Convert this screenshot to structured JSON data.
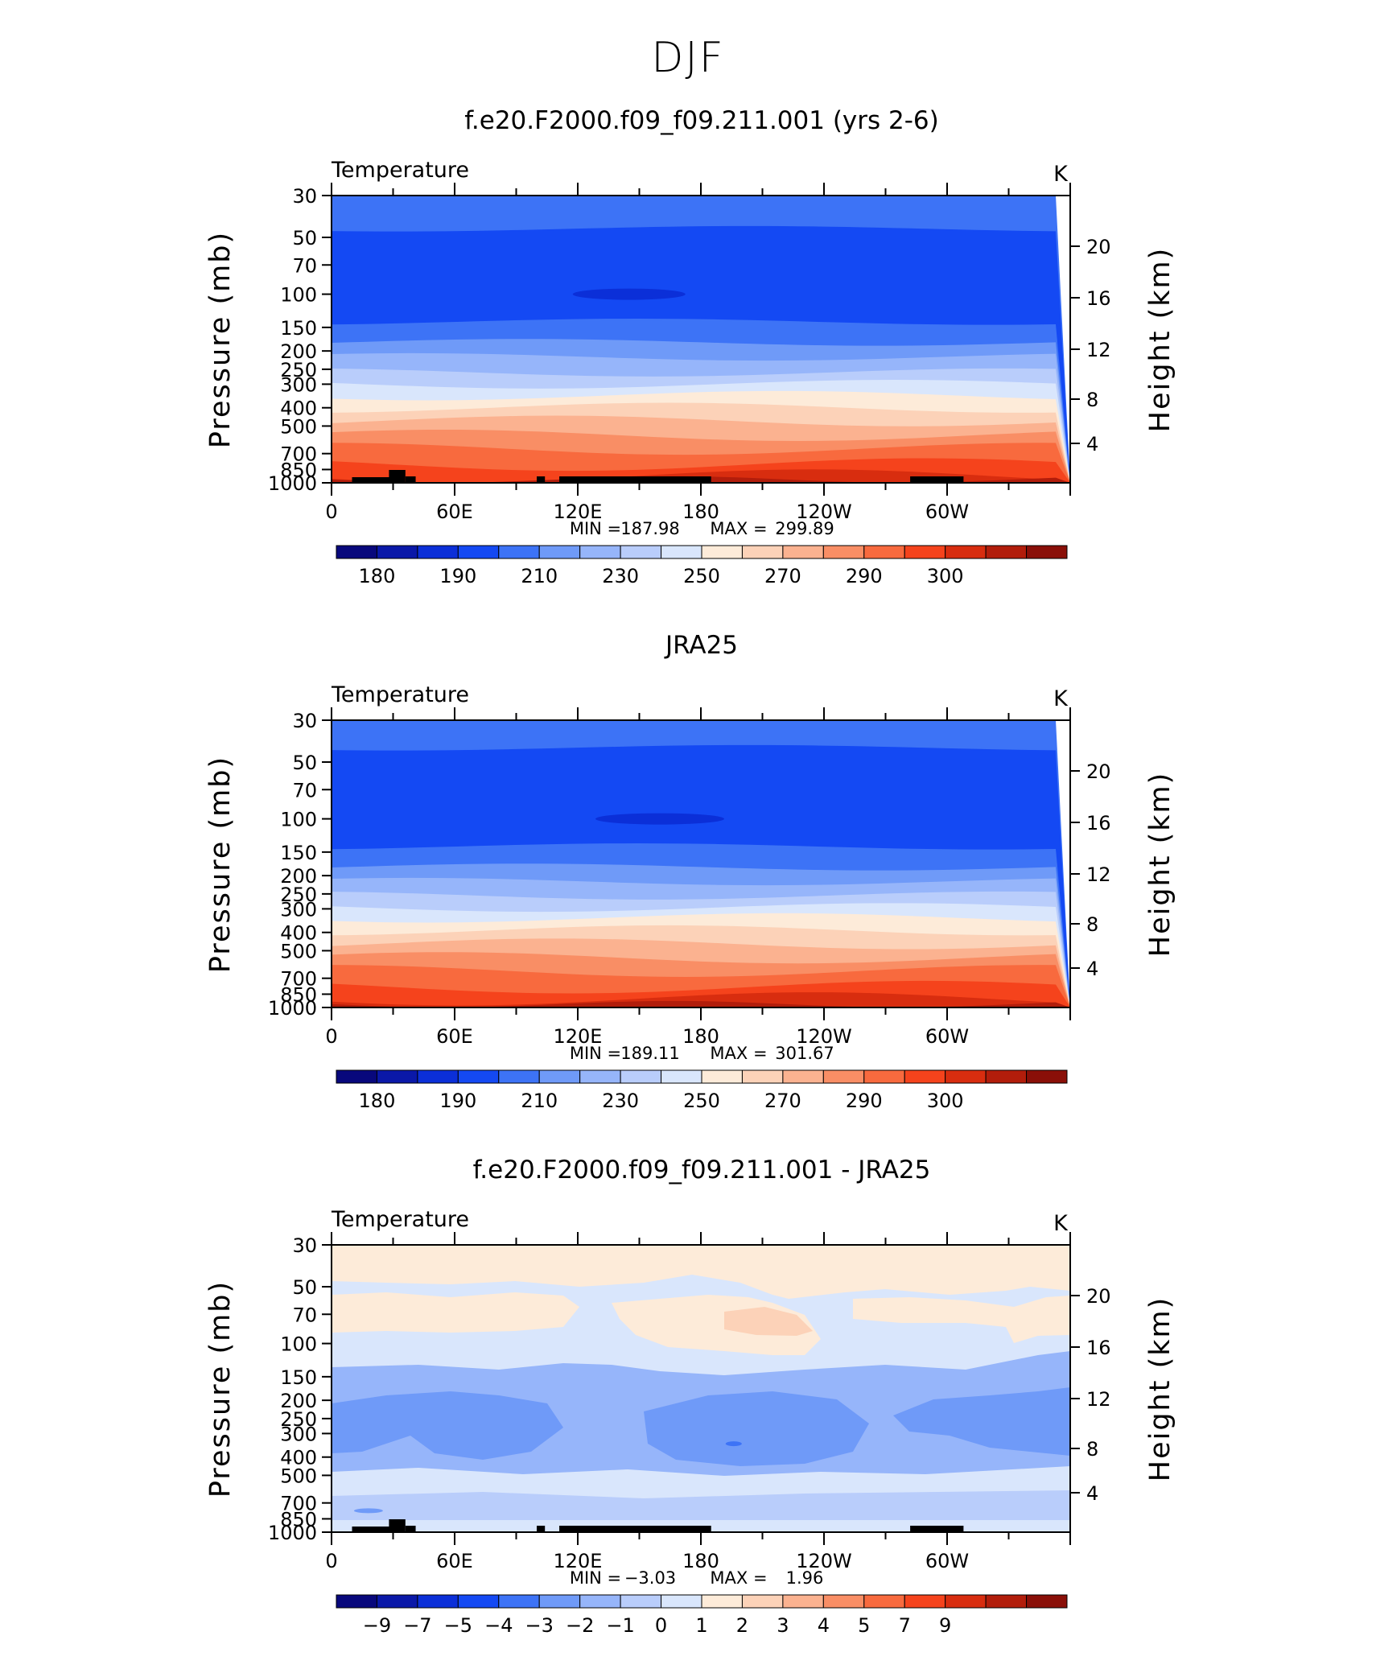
{
  "title": "DJF",
  "colors": {
    "temp_levels": [
      "#08087c",
      "#0a18a8",
      "#0b2fd8",
      "#1449f3",
      "#3d73f6",
      "#6f9af8",
      "#96b5fa",
      "#b9cdfb",
      "#d9e6fc",
      "#fdebd9",
      "#fcd2b8",
      "#fbb290",
      "#f98e65",
      "#f86a3e",
      "#f5431c",
      "#d82d0f",
      "#b21d0b",
      "#8a0f08"
    ],
    "diff_levels": [
      "#08087c",
      "#0a18a8",
      "#0b2fd8",
      "#1449f3",
      "#3d73f6",
      "#6f9af8",
      "#96b5fa",
      "#b9cdfb",
      "#d9e6fc",
      "#fdebd9",
      "#fcd2b8",
      "#fbb290",
      "#f98e65",
      "#f86a3e",
      "#f5431c",
      "#d82d0f",
      "#b21d0b",
      "#8a0f08"
    ]
  },
  "chart_data": [
    {
      "type": "contour",
      "title": "f.e20.F2000.f09_f09.211.001 (yrs 2-6)",
      "left_label": "Temperature",
      "units": "K",
      "ylabel": "Pressure (mb)",
      "ylabel_right": "Height (km)",
      "xlabel": "",
      "x_ticks": [
        "0",
        "60E",
        "120E",
        "180",
        "120W",
        "60W"
      ],
      "y_ticks": [
        "30",
        "50",
        "70",
        "100",
        "150",
        "200",
        "250",
        "300",
        "400",
        "500",
        "700",
        "850",
        "1000"
      ],
      "y_ticks_right": [
        "20",
        "16",
        "12",
        "8",
        "4"
      ],
      "min_label": "MIN =",
      "min_value": "187.98",
      "max_label": "MAX =",
      "max_value": "299.89",
      "colorbar_labels": [
        "180",
        "190",
        "210",
        "230",
        "250",
        "270",
        "290",
        "300"
      ],
      "profile_bands": [
        {
          "p_top": 30,
          "level": 4
        },
        {
          "p_top": 45,
          "level": 3
        },
        {
          "p_top": 140,
          "level": 4
        },
        {
          "p_top": 180,
          "level": 5
        },
        {
          "p_top": 215,
          "level": 6
        },
        {
          "p_top": 260,
          "level": 7
        },
        {
          "p_top": 300,
          "level": 8
        },
        {
          "p_top": 345,
          "level": 9
        },
        {
          "p_top": 400,
          "level": 10
        },
        {
          "p_top": 470,
          "level": 11
        },
        {
          "p_top": 560,
          "level": 12
        },
        {
          "p_top": 660,
          "level": 13
        },
        {
          "p_top": 800,
          "level": 14
        },
        {
          "p_top": 920,
          "level": 15
        }
      ],
      "topography": true
    },
    {
      "type": "contour",
      "title": "JRA25",
      "left_label": "Temperature",
      "units": "K",
      "ylabel": "Pressure (mb)",
      "ylabel_right": "Height (km)",
      "xlabel": "",
      "x_ticks": [
        "0",
        "60E",
        "120E",
        "180",
        "120W",
        "60W"
      ],
      "y_ticks": [
        "30",
        "50",
        "70",
        "100",
        "150",
        "200",
        "250",
        "300",
        "400",
        "500",
        "700",
        "850",
        "1000"
      ],
      "y_ticks_right": [
        "20",
        "16",
        "12",
        "8",
        "4"
      ],
      "min_label": "MIN =",
      "min_value": "189.11",
      "max_label": "MAX =",
      "max_value": "301.67",
      "colorbar_labels": [
        "180",
        "190",
        "210",
        "230",
        "250",
        "270",
        "290",
        "300"
      ],
      "profile_bands": [
        {
          "p_top": 30,
          "level": 4
        },
        {
          "p_top": 42,
          "level": 3
        },
        {
          "p_top": 140,
          "level": 4
        },
        {
          "p_top": 180,
          "level": 5
        },
        {
          "p_top": 215,
          "level": 6
        },
        {
          "p_top": 255,
          "level": 7
        },
        {
          "p_top": 295,
          "level": 8
        },
        {
          "p_top": 335,
          "level": 9
        },
        {
          "p_top": 390,
          "level": 10
        },
        {
          "p_top": 460,
          "level": 11
        },
        {
          "p_top": 545,
          "level": 12
        },
        {
          "p_top": 640,
          "level": 13
        },
        {
          "p_top": 780,
          "level": 14
        },
        {
          "p_top": 900,
          "level": 15
        }
      ],
      "topography": false
    },
    {
      "type": "contour",
      "title": "f.e20.F2000.f09_f09.211.001 - JRA25",
      "left_label": "Temperature",
      "units": "K",
      "ylabel": "Pressure (mb)",
      "ylabel_right": "Height (km)",
      "xlabel": "",
      "x_ticks": [
        "0",
        "60E",
        "120E",
        "180",
        "120W",
        "60W"
      ],
      "y_ticks": [
        "30",
        "50",
        "70",
        "100",
        "150",
        "200",
        "250",
        "300",
        "400",
        "500",
        "700",
        "850",
        "1000"
      ],
      "y_ticks_right": [
        "20",
        "16",
        "12",
        "8",
        "4"
      ],
      "min_label": "MIN =",
      "min_value": "−3.03",
      "max_label": "MAX =",
      "max_value": "1.96",
      "colorbar_labels": [
        "−9",
        "−7",
        "−5",
        "−4",
        "−3",
        "−2",
        "−1",
        "0",
        "1",
        "2",
        "3",
        "4",
        "5",
        "7",
        "9"
      ],
      "topography": true
    }
  ]
}
